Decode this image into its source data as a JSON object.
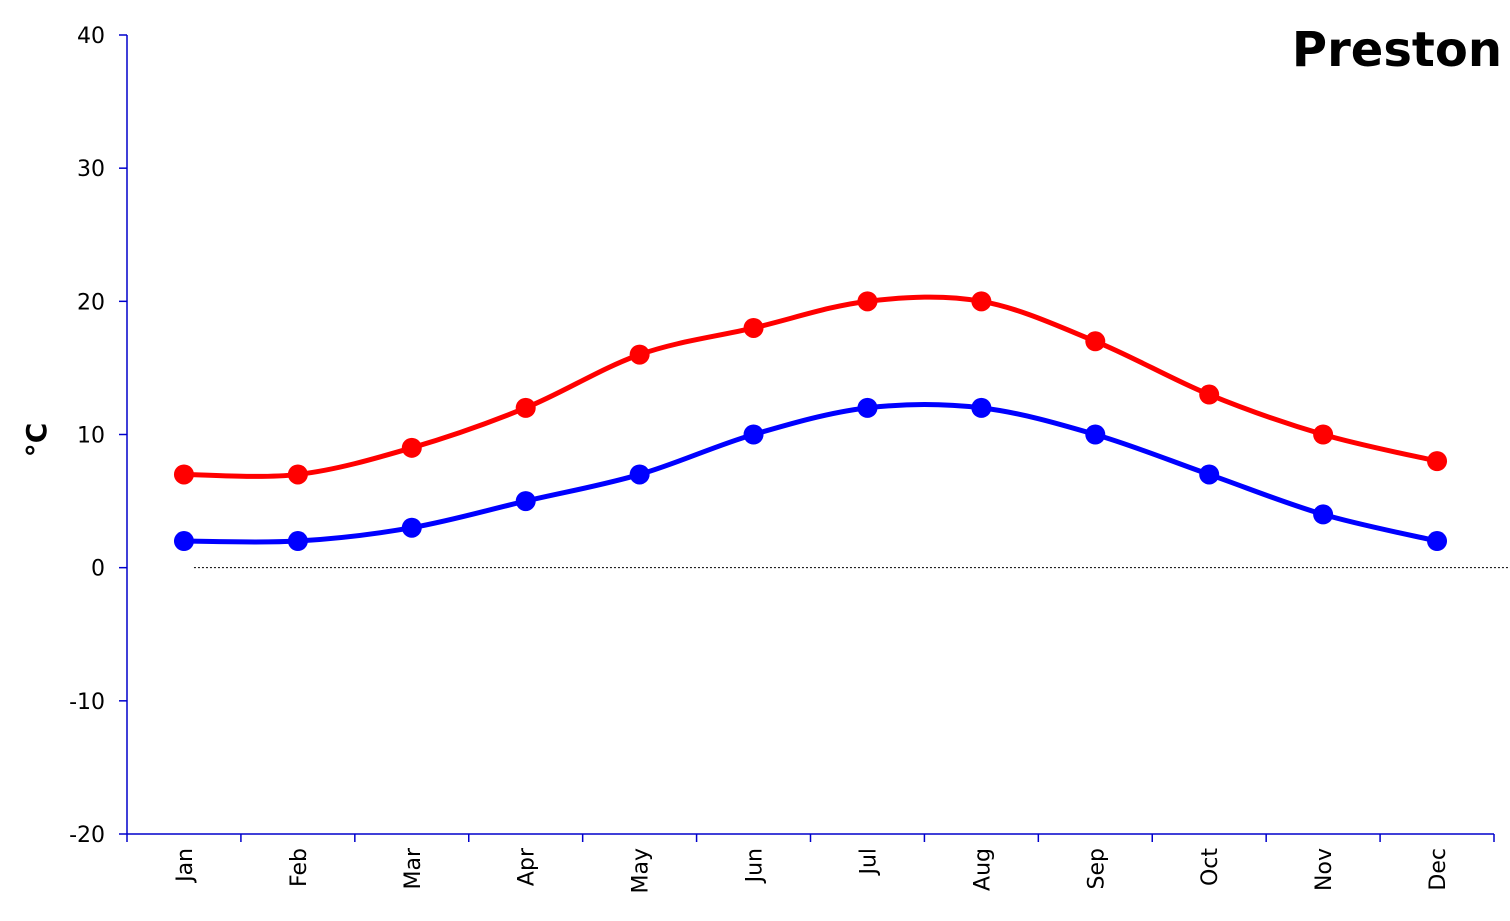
{
  "chart_data": {
    "type": "line",
    "title": "Preston",
    "xlabel": "",
    "ylabel": "°C",
    "categories": [
      "Jan",
      "Feb",
      "Mar",
      "Apr",
      "May",
      "Jun",
      "Jul",
      "Aug",
      "Sep",
      "Oct",
      "Nov",
      "Dec"
    ],
    "series": [
      {
        "color": "#ff0000",
        "values": [
          7,
          7,
          9,
          12,
          16,
          18,
          20,
          20,
          17,
          13,
          10,
          8
        ]
      },
      {
        "color": "#0000ff",
        "values": [
          2,
          2,
          3,
          5,
          7,
          10,
          12,
          12,
          10,
          7,
          4,
          2
        ]
      }
    ],
    "ylim": [
      -20,
      40
    ],
    "yticks": [
      40,
      30,
      20,
      10,
      0,
      -10,
      -20
    ],
    "zero_line": "dotted",
    "grid": false,
    "smooth": true
  }
}
